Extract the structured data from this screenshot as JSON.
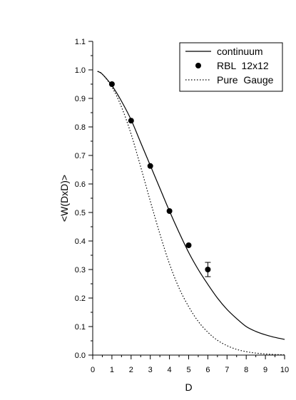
{
  "chart_data": {
    "type": "line",
    "title": "",
    "xlabel": "D",
    "ylabel": "<W(DxD)>",
    "xlim": [
      0,
      10
    ],
    "ylim": [
      0.0,
      1.1
    ],
    "x_ticks": [
      "0",
      "1",
      "2",
      "3",
      "4",
      "5",
      "6",
      "7",
      "8",
      "9",
      "10"
    ],
    "y_ticks": [
      "0.0",
      "0.1",
      "0.2",
      "0.3",
      "0.4",
      "0.5",
      "0.6",
      "0.7",
      "0.8",
      "0.9",
      "1.0",
      "1.1"
    ],
    "grid": false,
    "legend_position": "top-right",
    "series": [
      {
        "name": "continuum",
        "style": "solid",
        "x": [
          0.25,
          0.5,
          1,
          1.5,
          2,
          2.5,
          3,
          3.5,
          4,
          4.5,
          5,
          5.5,
          6,
          6.5,
          7,
          7.5,
          8,
          8.5,
          9,
          9.5,
          10
        ],
        "y": [
          0.995,
          0.985,
          0.945,
          0.89,
          0.825,
          0.745,
          0.665,
          0.585,
          0.505,
          0.43,
          0.36,
          0.3,
          0.248,
          0.2,
          0.16,
          0.128,
          0.1,
          0.083,
          0.071,
          0.062,
          0.055
        ]
      },
      {
        "name": "RBL  12x12",
        "style": "markers",
        "x": [
          1,
          2,
          3,
          4,
          5,
          6
        ],
        "y": [
          0.95,
          0.822,
          0.663,
          0.505,
          0.385,
          0.3
        ],
        "yerr": [
          0.0,
          0.0,
          0.0,
          0.0,
          0.0,
          0.025
        ]
      },
      {
        "name": "Pure  Gauge",
        "style": "dotted",
        "x": [
          0.25,
          0.5,
          1,
          1.5,
          2,
          2.5,
          3,
          3.5,
          4,
          4.5,
          5,
          5.5,
          6,
          6.5,
          7,
          7.5,
          8,
          8.5,
          9,
          9.5,
          10
        ],
        "y": [
          0.995,
          0.985,
          0.94,
          0.87,
          0.775,
          0.66,
          0.54,
          0.425,
          0.32,
          0.235,
          0.17,
          0.118,
          0.08,
          0.052,
          0.033,
          0.02,
          0.012,
          0.007,
          0.004,
          0.002,
          0.001
        ]
      }
    ]
  }
}
